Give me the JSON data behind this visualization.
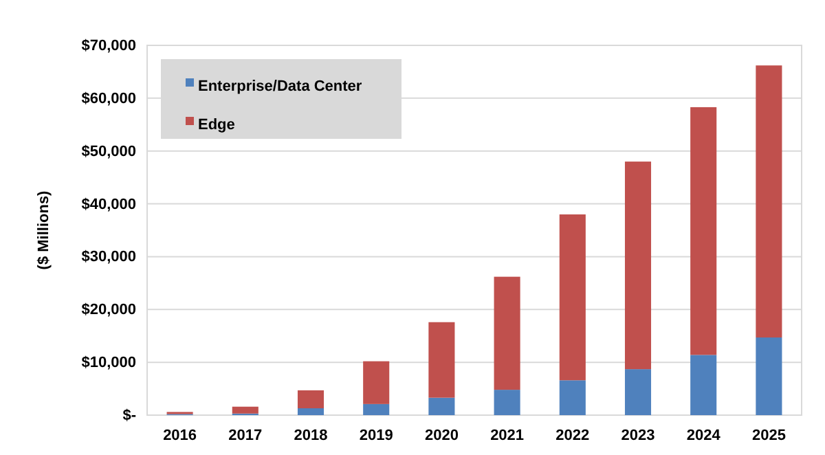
{
  "chart_data": {
    "type": "bar",
    "ylabel": "($ Millions)",
    "stacked": true,
    "categories": [
      "2016",
      "2017",
      "2018",
      "2019",
      "2020",
      "2021",
      "2022",
      "2023",
      "2024",
      "2025"
    ],
    "series": [
      {
        "name": "Enterprise/Data Center",
        "color": "#4f81bd",
        "values": [
          200,
          300,
          1300,
          2100,
          3300,
          4800,
          6600,
          8700,
          11400,
          14700
        ]
      },
      {
        "name": "Edge",
        "color": "#c0504d",
        "values": [
          400,
          1300,
          3400,
          8100,
          14300,
          21400,
          31400,
          39300,
          46900,
          51500
        ]
      }
    ],
    "ylim": [
      0,
      70000
    ],
    "yticks": [
      {
        "value": 0,
        "label": "$-"
      },
      {
        "value": 10000,
        "label": "$10,000"
      },
      {
        "value": 20000,
        "label": "$20,000"
      },
      {
        "value": 30000,
        "label": "$30,000"
      },
      {
        "value": 40000,
        "label": "$40,000"
      },
      {
        "value": 50000,
        "label": "$50,000"
      },
      {
        "value": 60000,
        "label": "$60,000"
      },
      {
        "value": 70000,
        "label": "$70,000"
      }
    ],
    "grid": "y",
    "legend": "top left"
  }
}
